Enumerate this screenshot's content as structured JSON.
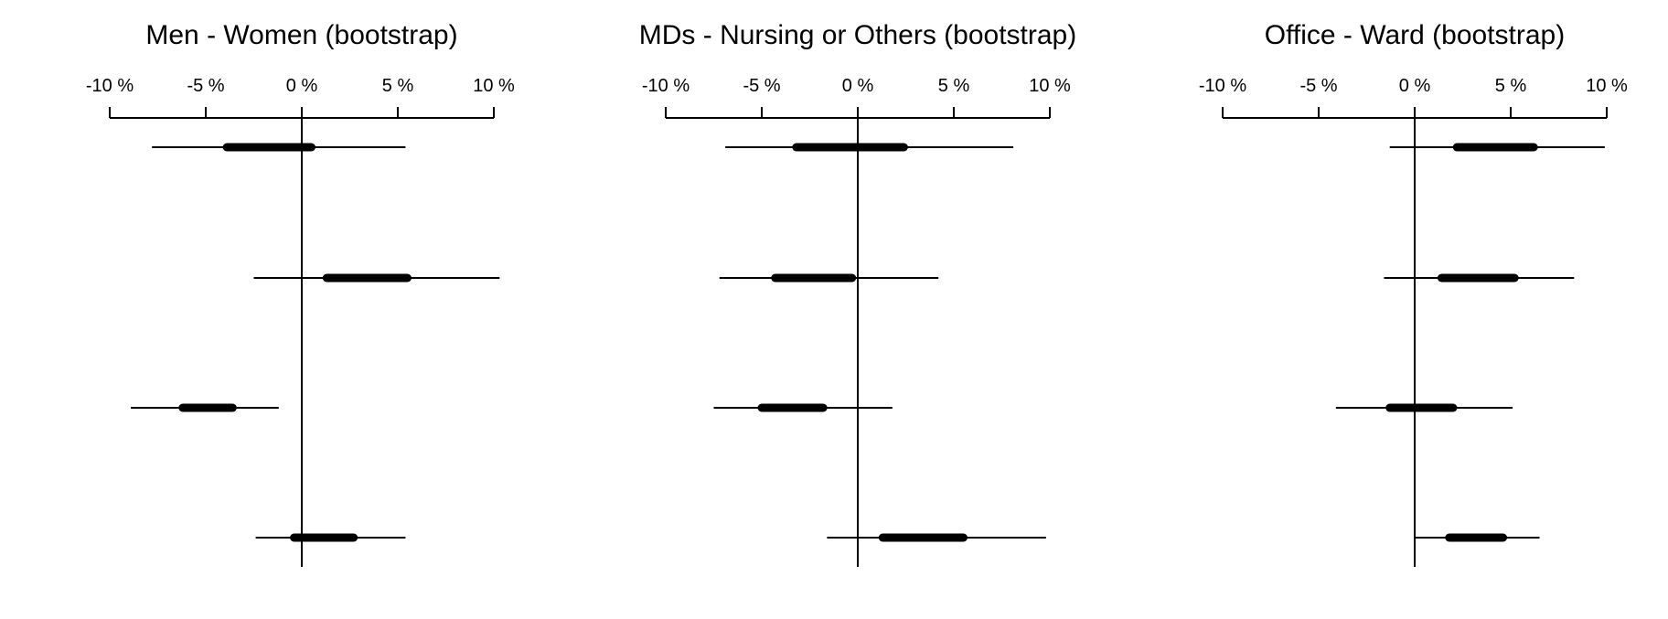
{
  "chart_data": [
    {
      "type": "forest",
      "title": "Men - Women (bootstrap)",
      "x_ticks": [
        "-10 %",
        "-5 %",
        "0 %",
        "5 %",
        "10 %"
      ],
      "x_tick_values": [
        -10,
        -5,
        0,
        5,
        10
      ],
      "xlim": [
        -10,
        10
      ],
      "reference_line": 0,
      "rows": [
        {
          "estimate": -1.6,
          "inner": [
            -3.9,
            0.5
          ],
          "outer": [
            -7.8,
            5.4
          ]
        },
        {
          "estimate": 3.5,
          "inner": [
            1.3,
            5.5
          ],
          "outer": [
            -2.5,
            10.3
          ]
        },
        {
          "estimate": -5.0,
          "inner": [
            -6.2,
            -3.6
          ],
          "outer": [
            -8.9,
            -1.2
          ]
        },
        {
          "estimate": 1.2,
          "inner": [
            -0.4,
            2.7
          ],
          "outer": [
            -2.4,
            5.4
          ]
        }
      ]
    },
    {
      "type": "forest",
      "title": "MDs - Nursing or Others (bootstrap)",
      "x_ticks": [
        "-10 %",
        "-5 %",
        "0 %",
        "5 %",
        "10 %"
      ],
      "x_tick_values": [
        -10,
        -5,
        0,
        5,
        10
      ],
      "xlim": [
        -10,
        10
      ],
      "reference_line": 0,
      "rows": [
        {
          "estimate": -0.2,
          "inner": [
            -3.2,
            2.4
          ],
          "outer": [
            -6.9,
            8.1
          ]
        },
        {
          "estimate": -2.1,
          "inner": [
            -4.3,
            -0.3
          ],
          "outer": [
            -7.2,
            4.2
          ]
        },
        {
          "estimate": -3.4,
          "inner": [
            -5.0,
            -1.8
          ],
          "outer": [
            -7.5,
            1.8
          ]
        },
        {
          "estimate": 3.5,
          "inner": [
            1.3,
            5.5
          ],
          "outer": [
            -1.6,
            9.8
          ]
        }
      ]
    },
    {
      "type": "forest",
      "title": "Office - Ward (bootstrap)",
      "x_ticks": [
        "-10 %",
        "-5 %",
        "0 %",
        "5 %",
        "10 %"
      ],
      "x_tick_values": [
        -10,
        -5,
        0,
        5,
        10
      ],
      "xlim": [
        -10,
        10
      ],
      "reference_line": 0,
      "rows": [
        {
          "estimate": 4.2,
          "inner": [
            2.2,
            6.2
          ],
          "outer": [
            -1.3,
            9.9
          ]
        },
        {
          "estimate": 3.3,
          "inner": [
            1.4,
            5.2
          ],
          "outer": [
            -1.6,
            8.3
          ]
        },
        {
          "estimate": 0.4,
          "inner": [
            -1.3,
            2.0
          ],
          "outer": [
            -4.1,
            5.1
          ]
        },
        {
          "estimate": 3.2,
          "inner": [
            1.8,
            4.6
          ],
          "outer": [
            0.0,
            6.5
          ]
        }
      ]
    }
  ]
}
